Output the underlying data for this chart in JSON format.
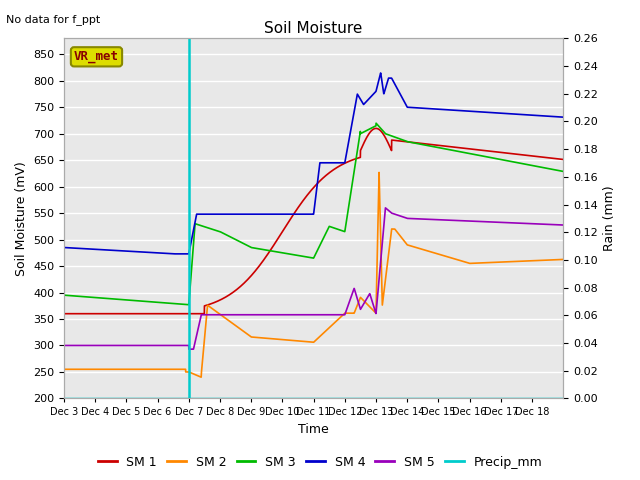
{
  "title": "Soil Moisture",
  "subtitle": "No data for f_ppt",
  "ylabel_left": "Soil Moisture (mV)",
  "ylabel_right": "Rain (mm)",
  "xlabel": "Time",
  "annotation_label": "VR_met",
  "x_tick_labels": [
    "Dec 3",
    "Dec 4",
    "Dec 5",
    "Dec 6",
    "Dec 7",
    "Dec 8",
    "Dec 9",
    "Dec 10",
    "Dec 11",
    "Dec 12",
    "Dec 13",
    "Dec 14",
    "Dec 15",
    "Dec 16",
    "Dec 17",
    "Dec 18"
  ],
  "ylim_left": [
    200,
    880
  ],
  "ylim_right": [
    0.0,
    0.26
  ],
  "yticks_left": [
    200,
    250,
    300,
    350,
    400,
    450,
    500,
    550,
    600,
    650,
    700,
    750,
    800,
    850
  ],
  "yticks_right": [
    0.0,
    0.02,
    0.04,
    0.06,
    0.08,
    0.1,
    0.12,
    0.14,
    0.16,
    0.18,
    0.2,
    0.22,
    0.24,
    0.26
  ],
  "colors": {
    "SM1": "#cc0000",
    "SM2": "#ff8800",
    "SM3": "#00bb00",
    "SM4": "#0000cc",
    "SM5": "#9900bb",
    "Precip": "#00cccc",
    "vline": "#00cccc"
  },
  "background_color": "#e8e8e8",
  "grid_color": "#ffffff",
  "annotation_box_facecolor": "#dddd00",
  "annotation_box_edgecolor": "#888800",
  "annotation_text_color": "#880000",
  "title_fontsize": 11,
  "subtitle_fontsize": 8,
  "axis_fontsize": 9,
  "tick_fontsize": 8,
  "legend_fontsize": 9
}
